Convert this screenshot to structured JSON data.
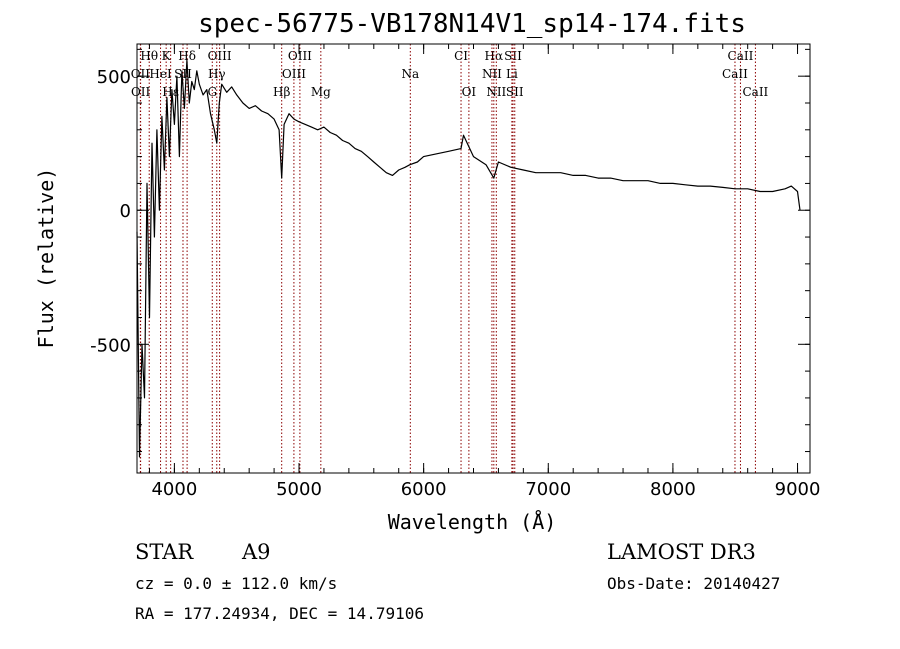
{
  "chart_data": {
    "type": "line",
    "title": "spec-56775-VB178N14V1_sp14-174.fits",
    "xlabel": "Wavelength (Å)",
    "ylabel": "Flux (relative)",
    "xlim": [
      3700,
      9100
    ],
    "ylim": [
      -980,
      620
    ],
    "x_ticks": [
      4000,
      5000,
      6000,
      7000,
      8000,
      9000
    ],
    "y_ticks": [
      -500,
      0,
      500
    ],
    "x_minor_step": 200,
    "y_minor_step": 100,
    "series": [
      {
        "name": "spectrum",
        "x": [
          3700,
          3720,
          3740,
          3760,
          3780,
          3800,
          3820,
          3840,
          3860,
          3880,
          3900,
          3920,
          3940,
          3960,
          3980,
          4000,
          4020,
          4040,
          4060,
          4080,
          4100,
          4120,
          4140,
          4160,
          4180,
          4200,
          4230,
          4260,
          4290,
          4320,
          4340,
          4360,
          4380,
          4420,
          4460,
          4500,
          4550,
          4600,
          4650,
          4700,
          4750,
          4800,
          4840,
          4861,
          4880,
          4920,
          4960,
          5000,
          5050,
          5100,
          5150,
          5200,
          5250,
          5300,
          5350,
          5400,
          5450,
          5500,
          5550,
          5600,
          5650,
          5700,
          5750,
          5800,
          5850,
          5890,
          5950,
          6000,
          6100,
          6200,
          6300,
          6320,
          6400,
          6500,
          6563,
          6600,
          6700,
          6800,
          6900,
          7000,
          7100,
          7200,
          7300,
          7400,
          7500,
          7600,
          7700,
          7800,
          7900,
          8000,
          8100,
          8200,
          8300,
          8400,
          8500,
          8600,
          8700,
          8800,
          8900,
          8950,
          9000,
          9020
        ],
        "values": [
          -80,
          -920,
          -500,
          -700,
          100,
          -400,
          250,
          -100,
          300,
          0,
          350,
          150,
          420,
          200,
          450,
          320,
          500,
          200,
          520,
          380,
          560,
          400,
          480,
          450,
          520,
          470,
          430,
          450,
          360,
          300,
          250,
          400,
          470,
          440,
          460,
          430,
          400,
          380,
          390,
          370,
          360,
          340,
          300,
          120,
          320,
          360,
          340,
          330,
          320,
          310,
          300,
          310,
          290,
          280,
          260,
          250,
          230,
          220,
          200,
          180,
          160,
          140,
          130,
          150,
          160,
          170,
          180,
          200,
          210,
          220,
          230,
          280,
          200,
          170,
          120,
          180,
          160,
          150,
          140,
          140,
          140,
          130,
          130,
          120,
          120,
          110,
          110,
          110,
          100,
          100,
          95,
          90,
          90,
          85,
          80,
          80,
          70,
          70,
          80,
          90,
          70,
          0
        ]
      }
    ],
    "line_markers": [
      {
        "label": "Hθ",
        "wavelength": 3798,
        "row": 0
      },
      {
        "label": "K",
        "wavelength": 3934,
        "row": 0
      },
      {
        "label": "Hδ",
        "wavelength": 4102,
        "row": 0
      },
      {
        "label": "OIII",
        "wavelength": 4363,
        "row": 0
      },
      {
        "label": "OIII",
        "wavelength": 5007,
        "row": 0
      },
      {
        "label": "CI",
        "wavelength": 6300,
        "row": 0
      },
      {
        "label": "Hα",
        "wavelength": 6563,
        "row": 0
      },
      {
        "label": "SII",
        "wavelength": 6717,
        "row": 0
      },
      {
        "label": "CaII",
        "wavelength": 8542,
        "row": 0
      },
      {
        "label": "OII",
        "wavelength": 3727,
        "row": 1
      },
      {
        "label": "HeI",
        "wavelength": 3889,
        "row": 1
      },
      {
        "label": "SII",
        "wavelength": 4069,
        "row": 1
      },
      {
        "label": "Hγ",
        "wavelength": 4340,
        "row": 1
      },
      {
        "label": "OIII",
        "wavelength": 4959,
        "row": 1
      },
      {
        "label": "Na",
        "wavelength": 5893,
        "row": 1
      },
      {
        "label": "NII",
        "wavelength": 6548,
        "row": 1
      },
      {
        "label": "Li",
        "wavelength": 6708,
        "row": 1
      },
      {
        "label": "CaII",
        "wavelength": 8498,
        "row": 1
      },
      {
        "label": "OII",
        "wavelength": 3729,
        "row": 2
      },
      {
        "label": "Hε",
        "wavelength": 3970,
        "row": 2
      },
      {
        "label": "G",
        "wavelength": 4304,
        "row": 2
      },
      {
        "label": "Hβ",
        "wavelength": 4861,
        "row": 2
      },
      {
        "label": "Mg",
        "wavelength": 5175,
        "row": 2
      },
      {
        "label": "OI",
        "wavelength": 6363,
        "row": 2
      },
      {
        "label": "NII",
        "wavelength": 6583,
        "row": 2
      },
      {
        "label": "SII",
        "wavelength": 6731,
        "row": 2
      },
      {
        "label": "CaII",
        "wavelength": 8662,
        "row": 2
      }
    ],
    "line_marker_color": "#8b0000"
  },
  "info": {
    "object_class": "STAR",
    "subclass": "A9",
    "survey": "LAMOST DR3",
    "redshift": "cz = 0.0 ± 112.0 km/s",
    "obs_date": "Obs-Date: 20140427",
    "coords": "RA = 177.24934, DEC =  14.79106"
  }
}
